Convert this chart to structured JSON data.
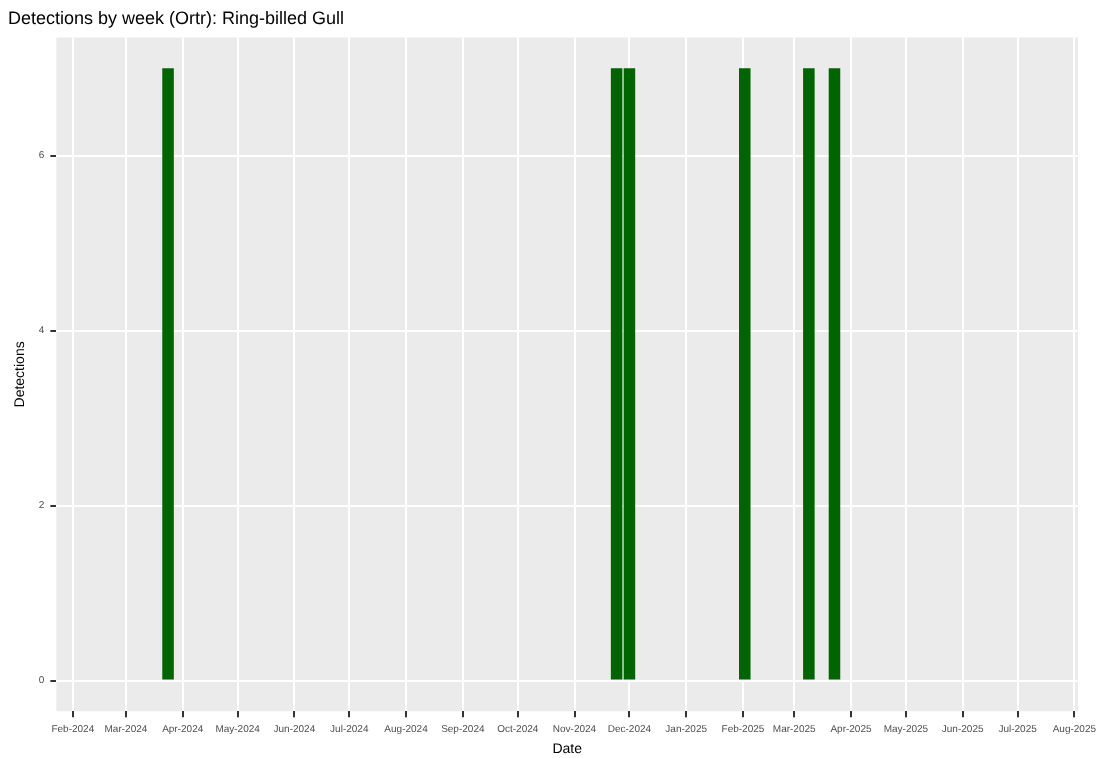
{
  "chart_data": {
    "type": "bar",
    "title": "Detections by week (Ortr): Ring-billed Gull",
    "xlabel": "Date",
    "ylabel": "Detections",
    "x": [
      "2024-03-24",
      "2024-11-24",
      "2024-12-01",
      "2025-02-02",
      "2025-03-09",
      "2025-03-23"
    ],
    "values": [
      7,
      7,
      7,
      7,
      7,
      7
    ],
    "color": "#006400",
    "xlim": [
      "2024-01-23",
      "2025-08-03"
    ],
    "xticks": [
      {
        "value": "2024-02",
        "label": "Feb-2024"
      },
      {
        "value": "2024-03",
        "label": "Mar-2024"
      },
      {
        "value": "2024-04",
        "label": "Apr-2024"
      },
      {
        "value": "2024-05",
        "label": "May-2024"
      },
      {
        "value": "2024-06",
        "label": "Jun-2024"
      },
      {
        "value": "2024-07",
        "label": "Jul-2024"
      },
      {
        "value": "2024-08",
        "label": "Aug-2024"
      },
      {
        "value": "2024-09",
        "label": "Sep-2024"
      },
      {
        "value": "2024-10",
        "label": "Oct-2024"
      },
      {
        "value": "2024-11",
        "label": "Nov-2024"
      },
      {
        "value": "2024-12",
        "label": "Dec-2024"
      },
      {
        "value": "2025-01",
        "label": "Jan-2025"
      },
      {
        "value": "2025-02",
        "label": "Feb-2025"
      },
      {
        "value": "2025-03",
        "label": "Mar-2025"
      },
      {
        "value": "2025-04",
        "label": "Apr-2025"
      },
      {
        "value": "2025-05",
        "label": "May-2025"
      },
      {
        "value": "2025-06",
        "label": "Jun-2025"
      },
      {
        "value": "2025-07",
        "label": "Jul-2025"
      },
      {
        "value": "2025-08",
        "label": "Aug-2025"
      }
    ],
    "ylim": [
      -0.35,
      7.35
    ],
    "yticks": [
      0,
      2,
      4,
      6
    ],
    "grid": true,
    "legend": false
  }
}
